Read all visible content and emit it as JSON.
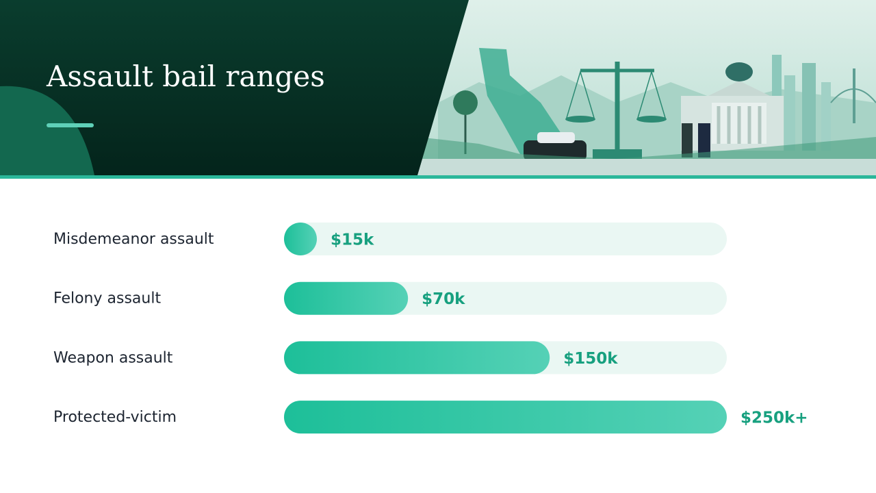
{
  "chart_data": {
    "type": "bar",
    "orientation": "horizontal",
    "title": "Assault bail ranges",
    "categories": [
      "Misdemeanor assault",
      "Felony assault",
      "Weapon assault",
      "Protected-victim"
    ],
    "values": [
      15,
      70,
      150,
      250
    ],
    "value_labels": [
      "$15k",
      "$70k",
      "$150k",
      "$250k+"
    ],
    "xlim": [
      0,
      250
    ],
    "color": "#1dbf99"
  }
}
